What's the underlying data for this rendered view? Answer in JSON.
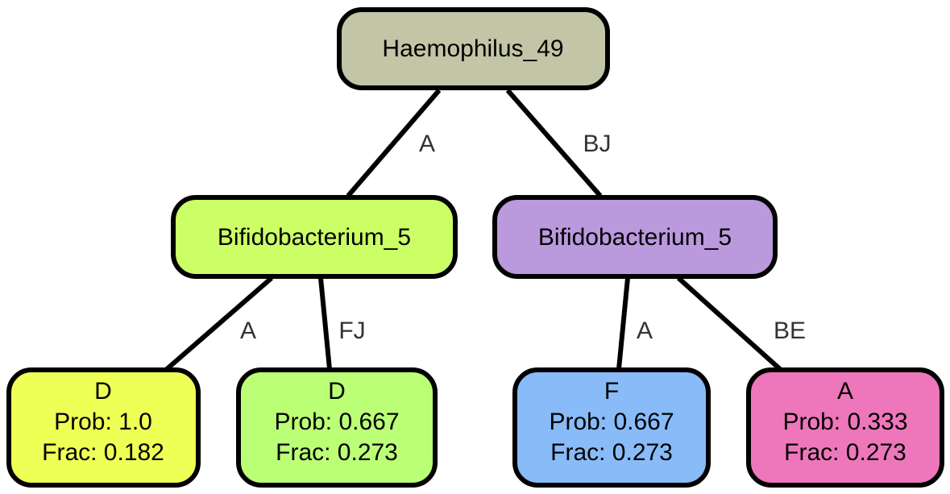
{
  "nodes": {
    "root": {
      "lines": [
        "Haemophilus_49"
      ],
      "color": "#c3c5a7"
    },
    "left": {
      "lines": [
        "Bifidobacterium_5"
      ],
      "color": "#ccff66"
    },
    "right": {
      "lines": [
        "Bifidobacterium_5"
      ],
      "color": "#bb99dd"
    },
    "leaf1": {
      "lines": [
        "D",
        "Prob: 1.0",
        "Frac: 0.182"
      ],
      "color": "#eeff55"
    },
    "leaf2": {
      "lines": [
        "D",
        "Prob: 0.667",
        "Frac: 0.273"
      ],
      "color": "#bbff77"
    },
    "leaf3": {
      "lines": [
        "F",
        "Prob: 0.667",
        "Frac: 0.273"
      ],
      "color": "#88bbf8"
    },
    "leaf4": {
      "lines": [
        "A",
        "Prob: 0.333",
        "Frac: 0.273"
      ],
      "color": "#ee77bb"
    }
  },
  "edges": {
    "root_left": "A",
    "root_right": "BJ",
    "left_leaf1": "A",
    "left_leaf2": "FJ",
    "right_leaf3": "A",
    "right_leaf4": "BE"
  }
}
